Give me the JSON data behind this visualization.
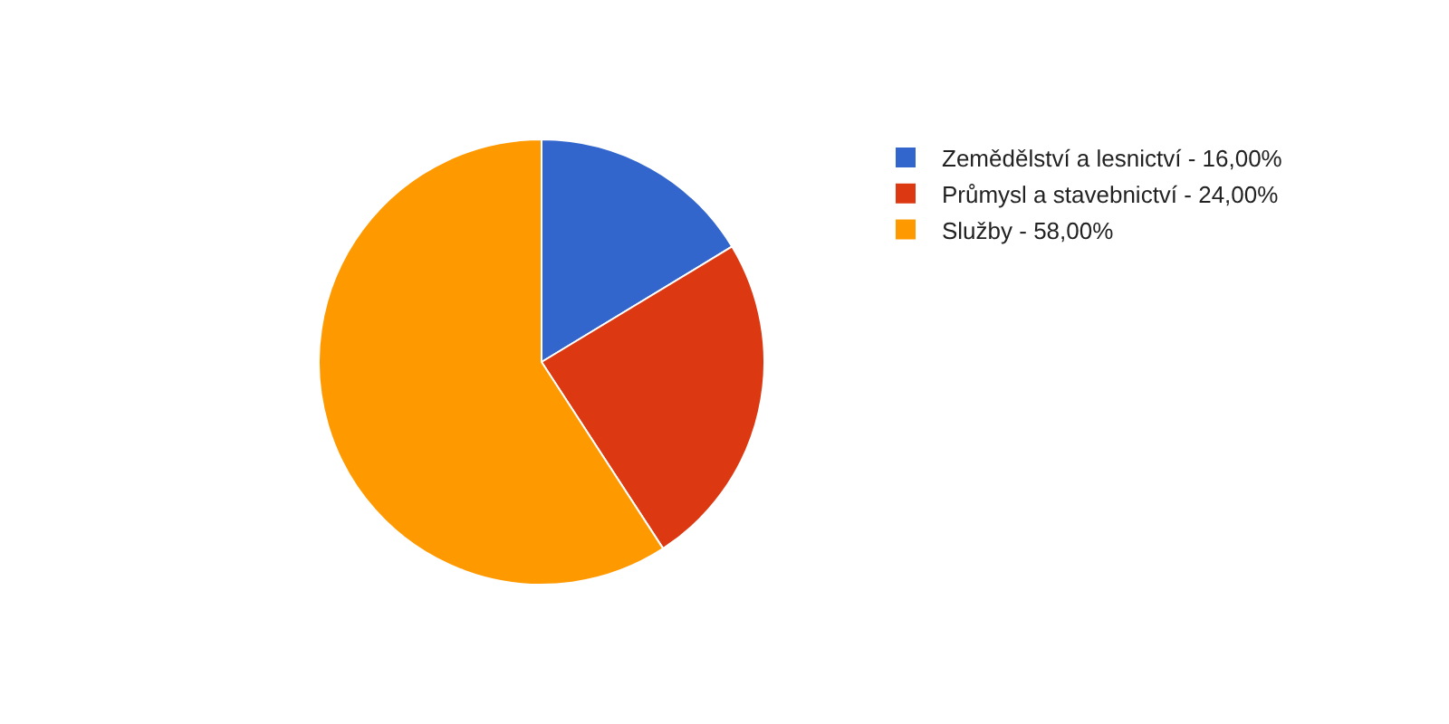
{
  "chart_data": {
    "type": "pie",
    "categories": [
      "Zemědělství a lesnictví",
      "Průmysl a stavebnictví",
      "Služby"
    ],
    "values": [
      16,
      24,
      58
    ],
    "value_labels": [
      "16,00%",
      "24,00%",
      "58,00%"
    ],
    "colors": [
      "#3366cc",
      "#dc3912",
      "#ff9900"
    ],
    "legend": "right"
  }
}
